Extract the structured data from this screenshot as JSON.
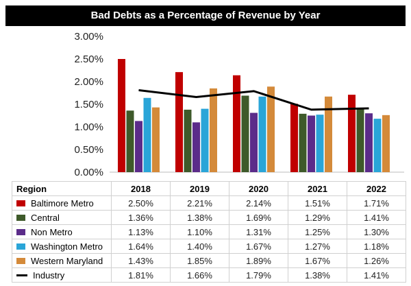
{
  "chart_data": {
    "type": "bar",
    "title": "Bad Debts as a Percentage of Revenue by Year",
    "categories": [
      "2018",
      "2019",
      "2020",
      "2021",
      "2022"
    ],
    "ylim": [
      0,
      3.0
    ],
    "yticks": [
      "0.00%",
      "0.50%",
      "1.00%",
      "1.50%",
      "2.00%",
      "2.50%",
      "3.00%"
    ],
    "table_header": "Region",
    "series": [
      {
        "name": "Baltimore Metro",
        "color": "#c00000",
        "values": [
          2.5,
          2.21,
          2.14,
          1.51,
          1.71
        ],
        "labels": [
          "2.50%",
          "2.21%",
          "2.14%",
          "1.51%",
          "1.71%"
        ]
      },
      {
        "name": "Central",
        "color": "#3e5a2a",
        "values": [
          1.36,
          1.38,
          1.69,
          1.29,
          1.41
        ],
        "labels": [
          "1.36%",
          "1.38%",
          "1.69%",
          "1.29%",
          "1.41%"
        ]
      },
      {
        "name": "Non Metro",
        "color": "#5b2c8a",
        "values": [
          1.13,
          1.1,
          1.31,
          1.25,
          1.3
        ],
        "labels": [
          "1.13%",
          "1.10%",
          "1.31%",
          "1.25%",
          "1.30%"
        ]
      },
      {
        "name": "Washington Metro",
        "color": "#2aa5d8",
        "values": [
          1.64,
          1.4,
          1.67,
          1.27,
          1.18
        ],
        "labels": [
          "1.64%",
          "1.40%",
          "1.67%",
          "1.27%",
          "1.18%"
        ]
      },
      {
        "name": "Western Maryland",
        "color": "#d48a3a",
        "values": [
          1.43,
          1.85,
          1.89,
          1.67,
          1.26
        ],
        "labels": [
          "1.43%",
          "1.85%",
          "1.89%",
          "1.67%",
          "1.26%"
        ]
      }
    ],
    "line_series": {
      "name": "Industry",
      "color": "#000000",
      "values": [
        1.81,
        1.66,
        1.79,
        1.38,
        1.41
      ],
      "labels": [
        "1.81%",
        "1.66%",
        "1.79%",
        "1.38%",
        "1.41%"
      ]
    }
  }
}
